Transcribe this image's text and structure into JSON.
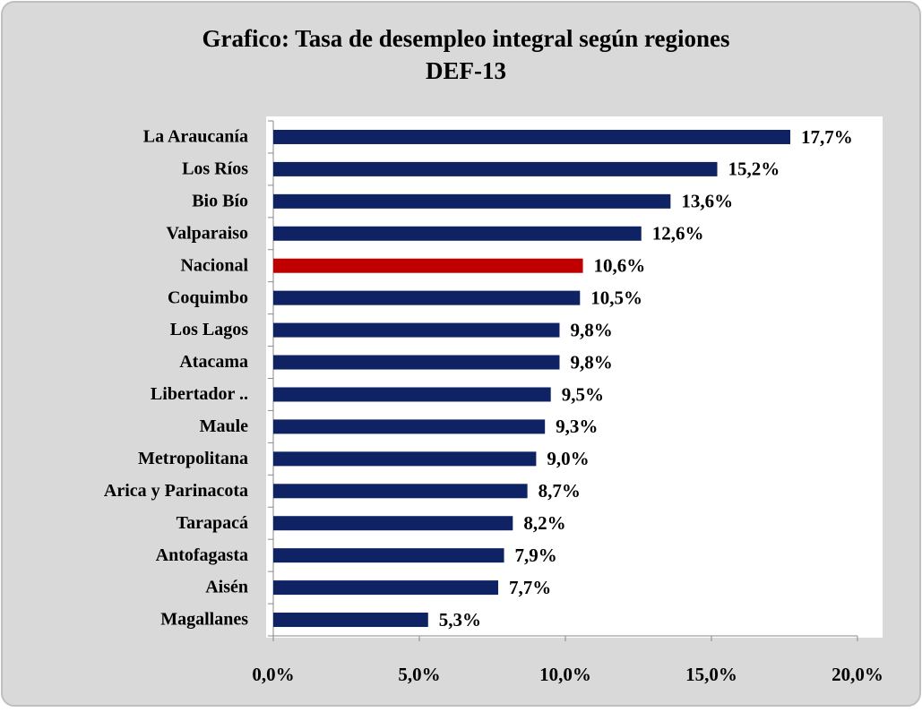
{
  "chart_data": {
    "type": "bar",
    "orientation": "horizontal",
    "title": "Grafico: Tasa de desempleo integral según regiones",
    "subtitle": "DEF-13",
    "categories": [
      "La Araucanía",
      "Los Ríos",
      "Bio Bío",
      "Valparaiso",
      "Nacional",
      "Coquimbo",
      "Los Lagos",
      "Atacama",
      "Libertador ..",
      "Maule",
      "Metropolitana",
      "Arica y Parinacota",
      "Tarapacá",
      "Antofagasta",
      "Aisén",
      "Magallanes"
    ],
    "values": [
      17.7,
      15.2,
      13.6,
      12.6,
      10.6,
      10.5,
      9.8,
      9.8,
      9.5,
      9.3,
      9.0,
      8.7,
      8.2,
      7.9,
      7.7,
      5.3
    ],
    "value_labels": [
      "17,7%",
      "15,2%",
      "13,6%",
      "12,6%",
      "10,6%",
      "10,5%",
      "9,8%",
      "9,8%",
      "9,5%",
      "9,3%",
      "9,0%",
      "8,7%",
      "8,2%",
      "7,9%",
      "7,7%",
      "5,3%"
    ],
    "colors": [
      "#0f2263",
      "#0f2263",
      "#0f2263",
      "#0f2263",
      "#c00000",
      "#0f2263",
      "#0f2263",
      "#0f2263",
      "#0f2263",
      "#0f2263",
      "#0f2263",
      "#0f2263",
      "#0f2263",
      "#0f2263",
      "#0f2263",
      "#0f2263"
    ],
    "xlim": [
      0,
      20
    ],
    "xticks": [
      {
        "value": 0,
        "label": "0,0%"
      },
      {
        "value": 5,
        "label": "5,0%"
      },
      {
        "value": 10,
        "label": "10,0%"
      },
      {
        "value": 15,
        "label": "15,0%"
      },
      {
        "value": 20,
        "label": "20,0%"
      }
    ],
    "grid": false
  }
}
